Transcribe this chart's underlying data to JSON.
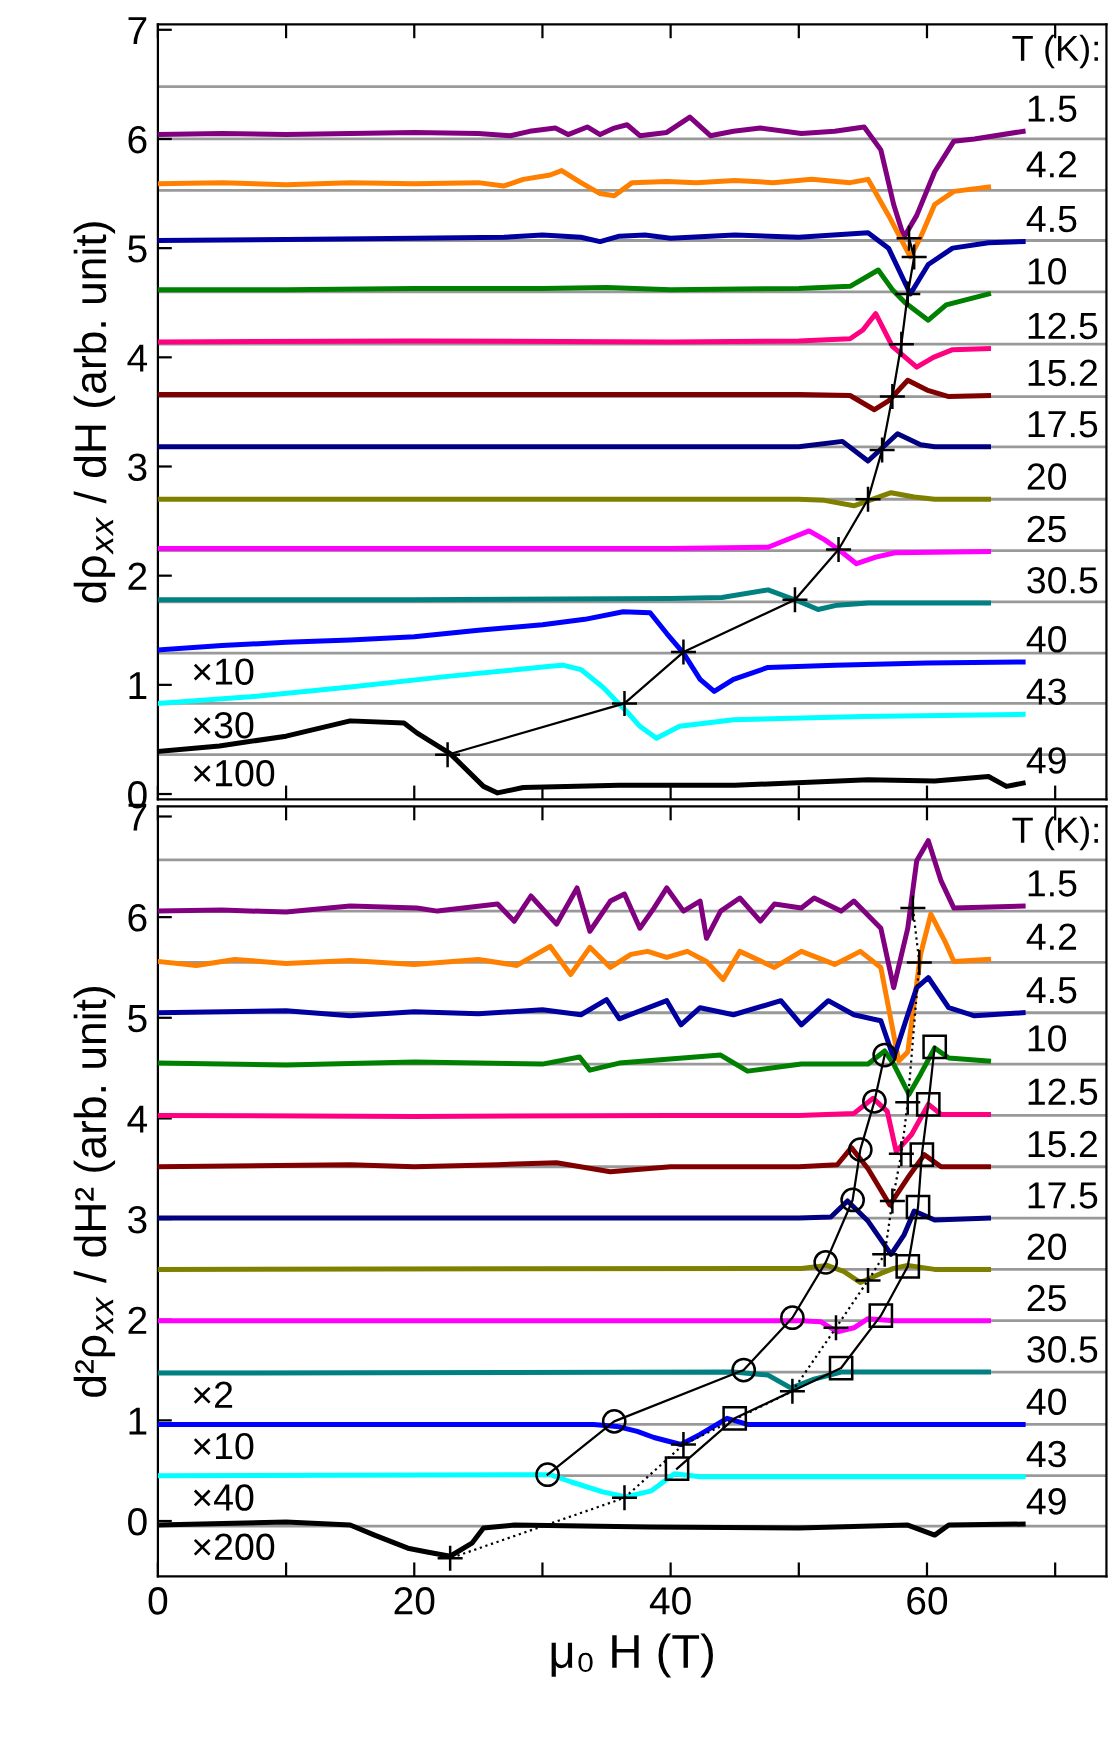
{
  "chart_data": [
    {
      "type": "line",
      "ylabel": "dρ$_{xx}$ / dH (arb. unit)",
      "xlim": [
        0,
        74
      ],
      "ylim": [
        -0.05,
        7.05
      ],
      "xticks": [
        0,
        {
          "value": 10,
          "label": null
        },
        20,
        {
          "value": 30,
          "label": null
        },
        40,
        {
          "value": 50,
          "label": null
        },
        60,
        {
          "value": 70,
          "label": null
        }
      ],
      "yticks": [
        0,
        1,
        2,
        3,
        4,
        5,
        6,
        7
      ],
      "tick_labels": "y",
      "ref_lines": [
        {
          "axis": "y",
          "value": 6.48,
          "color": "#999999"
        },
        {
          "axis": "y",
          "value": 6.0,
          "color": "#999999"
        },
        {
          "axis": "y",
          "value": 5.53,
          "color": "#999999"
        },
        {
          "axis": "y",
          "value": 5.07,
          "color": "#999999"
        },
        {
          "axis": "y",
          "value": 4.6,
          "color": "#999999"
        },
        {
          "axis": "y",
          "value": 4.12,
          "color": "#999999"
        },
        {
          "axis": "y",
          "value": 3.64,
          "color": "#999999"
        },
        {
          "axis": "y",
          "value": 3.18,
          "color": "#999999"
        },
        {
          "axis": "y",
          "value": 2.7,
          "color": "#999999"
        },
        {
          "axis": "y",
          "value": 2.23,
          "color": "#999999"
        },
        {
          "axis": "y",
          "value": 1.76,
          "color": "#999999"
        },
        {
          "axis": "y",
          "value": 1.29,
          "color": "#999999"
        },
        {
          "axis": "y",
          "value": 0.83,
          "color": "#999999"
        },
        {
          "axis": "y",
          "value": 0.36,
          "color": "#999999"
        }
      ],
      "annotations": [
        "T (K):",
        "1.5",
        "4.2",
        "4.5",
        "10",
        "12.5",
        "15.2",
        "17.5",
        "20",
        "25",
        "30.5",
        "40",
        "43",
        "49",
        "×10",
        "×30",
        "×100"
      ],
      "series": [
        {
          "color": "#800080",
          "x": [
            0,
            5,
            10,
            15,
            20,
            25,
            27.5,
            29,
            31,
            32,
            33.5,
            34.5,
            35.6,
            36.6,
            37.6,
            39.7,
            41.5,
            43.1,
            44.9,
            47,
            50.2,
            52.8,
            55.1,
            56.4,
            57.4,
            58.2,
            59.2,
            60.6,
            62.1,
            63.7,
            67.5
          ],
          "values": [
            6.04,
            6.05,
            6.04,
            6.05,
            6.06,
            6.05,
            6.03,
            6.07,
            6.1,
            6.04,
            6.11,
            6.04,
            6.1,
            6.13,
            6.03,
            6.06,
            6.2,
            6.03,
            6.07,
            6.1,
            6.05,
            6.07,
            6.11,
            5.9,
            5.4,
            5.1,
            5.3,
            5.7,
            5.98,
            6.0,
            6.07
          ]
        },
        {
          "color": "#ff8000",
          "x": [
            0,
            5,
            10,
            15,
            20,
            25,
            27,
            28.5,
            30.6,
            31.5,
            33,
            34.5,
            35.6,
            37,
            39.7,
            42,
            45,
            48,
            51,
            54,
            55.4,
            57,
            58.7,
            59.5,
            60.6,
            62.1,
            64.8
          ],
          "values": [
            5.59,
            5.6,
            5.58,
            5.6,
            5.59,
            5.6,
            5.57,
            5.63,
            5.67,
            5.71,
            5.6,
            5.5,
            5.48,
            5.6,
            5.61,
            5.6,
            5.62,
            5.6,
            5.63,
            5.6,
            5.63,
            5.3,
            4.92,
            5.1,
            5.4,
            5.52,
            5.56
          ]
        },
        {
          "color": "#0000a0",
          "x": [
            0,
            10,
            20,
            27,
            30,
            33,
            34.5,
            36,
            38,
            40,
            45,
            50,
            55.4,
            57,
            58.7,
            60.1,
            62,
            64.8,
            67.5
          ],
          "values": [
            5.07,
            5.08,
            5.09,
            5.1,
            5.12,
            5.1,
            5.06,
            5.11,
            5.12,
            5.09,
            5.12,
            5.1,
            5.14,
            5.0,
            4.58,
            4.85,
            5.0,
            5.05,
            5.06
          ]
        },
        {
          "color": "#008000",
          "x": [
            0,
            10,
            20,
            30,
            35,
            40,
            50,
            54,
            56.2,
            57.3,
            58.3,
            60.1,
            61.5,
            64.8
          ],
          "values": [
            4.62,
            4.62,
            4.63,
            4.63,
            4.64,
            4.62,
            4.63,
            4.65,
            4.8,
            4.62,
            4.5,
            4.34,
            4.48,
            4.58
          ]
        },
        {
          "color": "#ff0080",
          "x": [
            0,
            20,
            40,
            50,
            54,
            55,
            56,
            57.3,
            59.2,
            60.5,
            62,
            64.8
          ],
          "values": [
            4.14,
            4.15,
            4.14,
            4.15,
            4.17,
            4.25,
            4.4,
            4.1,
            3.91,
            4.0,
            4.07,
            4.08
          ]
        },
        {
          "color": "#800000",
          "x": [
            0,
            20,
            40,
            50,
            54,
            55.9,
            57,
            58.5,
            60,
            61.7,
            64.8
          ],
          "values": [
            3.66,
            3.66,
            3.66,
            3.66,
            3.65,
            3.52,
            3.6,
            3.79,
            3.7,
            3.64,
            3.65
          ]
        },
        {
          "color": "#000080",
          "x": [
            0,
            20,
            40,
            50,
            53.4,
            55.4,
            57.7,
            59.5,
            60.6,
            64.8
          ],
          "values": [
            3.18,
            3.18,
            3.18,
            3.18,
            3.23,
            3.05,
            3.3,
            3.2,
            3.18,
            3.18
          ]
        },
        {
          "color": "#808000",
          "x": [
            0,
            20,
            40,
            50,
            52,
            54.3,
            57.2,
            59,
            60.6,
            64.8
          ],
          "values": [
            2.7,
            2.7,
            2.7,
            2.7,
            2.69,
            2.64,
            2.76,
            2.72,
            2.7,
            2.7
          ]
        },
        {
          "color": "#ff00ff",
          "x": [
            0,
            20,
            40,
            47.6,
            49.5,
            50.8,
            52,
            53.2,
            54.5,
            56,
            57.5,
            64.8
          ],
          "values": [
            2.25,
            2.25,
            2.25,
            2.26,
            2.35,
            2.41,
            2.33,
            2.23,
            2.11,
            2.17,
            2.21,
            2.22
          ]
        },
        {
          "color": "#008080",
          "x": [
            0,
            20,
            40,
            44,
            47.6,
            49.9,
            51.5,
            53,
            55.4,
            64.8
          ],
          "values": [
            1.78,
            1.78,
            1.79,
            1.8,
            1.87,
            1.77,
            1.69,
            1.73,
            1.75,
            1.75
          ]
        },
        {
          "color": "#0000ff",
          "x": [
            0,
            5,
            10,
            15,
            20,
            25,
            30,
            33.3,
            36.3,
            38.4,
            39.7,
            41,
            42.3,
            43.4,
            44.9,
            47.6,
            52.8,
            60,
            67.5
          ],
          "values": [
            1.32,
            1.36,
            1.39,
            1.41,
            1.44,
            1.5,
            1.55,
            1.6,
            1.67,
            1.66,
            1.47,
            1.29,
            1.05,
            0.94,
            1.05,
            1.16,
            1.18,
            1.2,
            1.21
          ]
        },
        {
          "color": "#00ffff",
          "x": [
            0,
            7.2,
            15,
            22.8,
            30.6,
            31.6,
            33,
            34.7,
            36.7,
            37.6,
            38.9,
            40.7,
            44.9,
            55,
            67.5
          ],
          "values": [
            0.83,
            0.89,
            0.98,
            1.08,
            1.17,
            1.18,
            1.14,
            0.98,
            0.74,
            0.62,
            0.51,
            0.62,
            0.68,
            0.71,
            0.73
          ]
        },
        {
          "color": "#000000",
          "x": [
            0,
            4.8,
            10,
            15,
            19.2,
            20.2,
            22.8,
            25.4,
            26.5,
            28.5,
            36,
            45,
            55.4,
            60.6,
            64.8,
            66.2,
            67.5
          ],
          "values": [
            0.39,
            0.44,
            0.53,
            0.67,
            0.65,
            0.56,
            0.37,
            0.07,
            0.01,
            0.06,
            0.08,
            0.08,
            0.13,
            0.12,
            0.16,
            0.07,
            0.1
          ]
        },
        {
          "color": "#000000",
          "marker": "cross",
          "line_style": "solid",
          "x": [
            58.6,
            59.0,
            58.5,
            58.0,
            57.3,
            56.5,
            55.4,
            53.1,
            49.7,
            41.0,
            36.4,
            22.6
          ],
          "values": [
            5.09,
            4.92,
            4.58,
            4.12,
            3.64,
            3.15,
            2.7,
            2.24,
            1.78,
            1.3,
            0.83,
            0.36
          ]
        }
      ]
    },
    {
      "type": "line",
      "ylabel": "d²ρ$_{xx}$ / dH² (arb. unit)",
      "xlabel": "μ₀ H (T)",
      "xlim": [
        0,
        74
      ],
      "ylim": [
        -0.55,
        7.1
      ],
      "xticks": [
        0,
        {
          "value": 10,
          "label": null
        },
        20,
        {
          "value": 30,
          "label": null
        },
        40,
        {
          "value": 50,
          "label": null
        },
        60,
        {
          "value": 70,
          "label": null
        }
      ],
      "yticks": [
        0,
        1,
        2,
        3,
        4,
        5,
        6,
        7
      ],
      "ref_lines": [
        {
          "axis": "y",
          "value": 6.57,
          "color": "#999999"
        },
        {
          "axis": "y",
          "value": 6.06,
          "color": "#999999"
        },
        {
          "axis": "y",
          "value": 5.55,
          "color": "#999999"
        },
        {
          "axis": "y",
          "value": 5.05,
          "color": "#999999"
        },
        {
          "axis": "y",
          "value": 4.54,
          "color": "#999999"
        },
        {
          "axis": "y",
          "value": 4.03,
          "color": "#999999"
        },
        {
          "axis": "y",
          "value": 3.52,
          "color": "#999999"
        },
        {
          "axis": "y",
          "value": 3.01,
          "color": "#999999"
        },
        {
          "axis": "y",
          "value": 2.5,
          "color": "#999999"
        },
        {
          "axis": "y",
          "value": 1.99,
          "color": "#999999"
        },
        {
          "axis": "y",
          "value": 1.48,
          "color": "#999999"
        },
        {
          "axis": "y",
          "value": 0.96,
          "color": "#999999"
        },
        {
          "axis": "y",
          "value": 0.45,
          "color": "#999999"
        },
        {
          "axis": "y",
          "value": -0.05,
          "color": "#999999"
        }
      ],
      "annotations": [
        "T (K):",
        "1.5",
        "4.2",
        "4.5",
        "10",
        "12.5",
        "15.2",
        "17.5",
        "20",
        "25",
        "30.5",
        "40",
        "43",
        "49",
        "×2",
        "×10",
        "×40",
        "×200"
      ],
      "series": [
        {
          "color": "#800080",
          "x": [
            0,
            5,
            10,
            15,
            20.2,
            21.8,
            26.5,
            27.8,
            29.1,
            31.1,
            32.7,
            33.7,
            35.3,
            36.4,
            37.6,
            38.7,
            39.7,
            41,
            42.3,
            42.8,
            43.9,
            45.4,
            47,
            48.1,
            50.2,
            51.2,
            53.3,
            54.3,
            56.4,
            57.4,
            58.5,
            59.2,
            60.1,
            61.1,
            62.1,
            67.5
          ],
          "values": [
            6.06,
            6.07,
            6.05,
            6.11,
            6.09,
            6.06,
            6.13,
            5.96,
            6.21,
            5.93,
            6.29,
            5.86,
            6.16,
            6.23,
            5.89,
            6.09,
            6.29,
            6.06,
            6.16,
            5.79,
            6.06,
            6.19,
            5.96,
            6.13,
            6.09,
            6.19,
            6.06,
            6.16,
            5.89,
            5.3,
            5.89,
            6.56,
            6.76,
            6.36,
            6.09,
            6.11
          ]
        },
        {
          "color": "#ff8000",
          "x": [
            0,
            3,
            6,
            10,
            15,
            20,
            25,
            28,
            30.6,
            32.2,
            33.7,
            35.3,
            36.9,
            38.2,
            39.7,
            41.3,
            42.8,
            44.1,
            45.4,
            48.1,
            50.2,
            52.8,
            54.8,
            56.4,
            57.8,
            58.5,
            59.5,
            60.3,
            61.4,
            62.1,
            64.8
          ],
          "values": [
            5.56,
            5.52,
            5.58,
            5.54,
            5.57,
            5.53,
            5.58,
            5.52,
            5.71,
            5.43,
            5.7,
            5.5,
            5.63,
            5.66,
            5.6,
            5.66,
            5.56,
            5.38,
            5.66,
            5.5,
            5.66,
            5.53,
            5.66,
            5.5,
            4.57,
            4.66,
            5.63,
            6.03,
            5.76,
            5.56,
            5.58
          ]
        },
        {
          "color": "#0000a0",
          "x": [
            0,
            10,
            15,
            20,
            25,
            30,
            33,
            35,
            36,
            39.7,
            40.8,
            42.3,
            44.9,
            48.6,
            50.2,
            52.3,
            54.3,
            56.4,
            57.4,
            58.5,
            59.2,
            60.1,
            61.7,
            63.7,
            67.5
          ],
          "values": [
            5.05,
            5.07,
            5.02,
            5.06,
            5.04,
            5.08,
            5.03,
            5.18,
            4.99,
            5.17,
            4.93,
            5.1,
            5.03,
            5.17,
            4.93,
            5.17,
            5.03,
            4.97,
            4.6,
            5.03,
            5.3,
            5.4,
            5.1,
            5.02,
            5.05
          ]
        },
        {
          "color": "#008000",
          "x": [
            0,
            10,
            20,
            30,
            32.9,
            33.7,
            36,
            43.9,
            46,
            50.2,
            55.4,
            56.7,
            57.4,
            58.6,
            59.5,
            60.6,
            61.7,
            64.8
          ],
          "values": [
            4.55,
            4.53,
            4.56,
            4.54,
            4.61,
            4.48,
            4.55,
            4.63,
            4.47,
            4.54,
            4.54,
            4.67,
            4.54,
            4.24,
            4.44,
            4.7,
            4.6,
            4.57
          ]
        },
        {
          "color": "#ff0080",
          "x": [
            0,
            20,
            40,
            50,
            54.3,
            55.8,
            56.9,
            57.6,
            58.8,
            60.1,
            61.1,
            64.8
          ],
          "values": [
            4.03,
            4.02,
            4.03,
            4.03,
            4.05,
            4.2,
            4.07,
            3.67,
            3.84,
            4.14,
            4.04,
            4.04
          ]
        },
        {
          "color": "#800000",
          "x": [
            0,
            15,
            20,
            26.5,
            31.1,
            35.3,
            40,
            50,
            53,
            54.1,
            55.4,
            57.1,
            58.5,
            59.8,
            61.1,
            64.8
          ],
          "values": [
            3.52,
            3.54,
            3.52,
            3.54,
            3.56,
            3.47,
            3.52,
            3.52,
            3.54,
            3.71,
            3.5,
            3.14,
            3.41,
            3.64,
            3.52,
            3.52
          ]
        },
        {
          "color": "#000080",
          "x": [
            0,
            50,
            52.5,
            53.8,
            55.4,
            57.2,
            58.2,
            59.0,
            60.6,
            64.8
          ],
          "values": [
            3.01,
            3.01,
            3.02,
            3.18,
            2.98,
            2.65,
            2.84,
            3.08,
            2.99,
            3.01
          ]
        },
        {
          "color": "#808000",
          "x": [
            0,
            50.2,
            52.2,
            53.5,
            54.8,
            56.4,
            57.4,
            58.5,
            60.6,
            64.8
          ],
          "values": [
            2.5,
            2.51,
            2.54,
            2.48,
            2.37,
            2.46,
            2.51,
            2.54,
            2.5,
            2.5
          ]
        },
        {
          "color": "#ff00ff",
          "x": [
            0,
            50.2,
            51.7,
            53.0,
            54.3,
            55.4,
            57.4,
            64.8
          ],
          "values": [
            1.99,
            1.99,
            1.98,
            1.88,
            1.92,
            2.01,
            1.99,
            1.99
          ]
        },
        {
          "color": "#008080",
          "x": [
            0,
            44.9,
            47.6,
            49.4,
            51.2,
            53.3,
            64.8
          ],
          "values": [
            1.47,
            1.48,
            1.45,
            1.32,
            1.41,
            1.48,
            1.48
          ]
        },
        {
          "color": "#0000ff",
          "x": [
            0,
            34,
            35.8,
            37.4,
            38.7,
            40.8,
            42.3,
            44.4,
            46,
            50,
            67.5
          ],
          "values": [
            0.96,
            0.96,
            0.94,
            0.89,
            0.83,
            0.76,
            0.86,
            1.02,
            0.96,
            0.96,
            0.96
          ]
        },
        {
          "color": "#00ffff",
          "x": [
            0,
            30.6,
            32.2,
            34.7,
            36.5,
            38.5,
            40.3,
            42.3,
            67.5
          ],
          "values": [
            0.45,
            0.46,
            0.39,
            0.29,
            0.24,
            0.3,
            0.47,
            0.44,
            0.44
          ]
        },
        {
          "color": "#000000",
          "x": [
            0,
            10,
            15,
            16.9,
            19.5,
            21.1,
            22.8,
            24.5,
            25.4,
            27.8,
            38.4,
            50,
            58.5,
            60.6,
            61.7,
            67.5
          ],
          "values": [
            -0.04,
            -0.01,
            -0.04,
            -0.14,
            -0.27,
            -0.31,
            -0.35,
            -0.22,
            -0.07,
            -0.04,
            -0.06,
            -0.07,
            -0.04,
            -0.14,
            -0.04,
            -0.03
          ]
        },
        {
          "color": "#000000",
          "marker": "circle",
          "line_style": "solid",
          "x": [
            56.7,
            55.9,
            54.8,
            54.2,
            52.1,
            49.5,
            45.7,
            35.6,
            30.4
          ],
          "values": [
            4.63,
            4.17,
            3.69,
            3.19,
            2.57,
            2.02,
            1.5,
            0.99,
            0.46
          ]
        },
        {
          "color": "#000000",
          "marker": "square",
          "line_style": "solid",
          "x": [
            60.6,
            60.1,
            59.6,
            59.3,
            58.5,
            56.4,
            53.3,
            45.0,
            40.5
          ],
          "values": [
            4.71,
            4.14,
            3.64,
            3.12,
            2.53,
            2.04,
            1.52,
            1.02,
            0.52
          ]
        },
        {
          "color": "#000000",
          "marker": "cross",
          "line_style": "dotted",
          "x": [
            58.9,
            59.4,
            58.5,
            58.0,
            57.3,
            56.7,
            55.4,
            52.9,
            49.5,
            41.0,
            36.4,
            22.8
          ],
          "values": [
            6.09,
            5.55,
            4.16,
            3.65,
            3.18,
            2.65,
            2.39,
            1.92,
            1.29,
            0.76,
            0.23,
            -0.37
          ]
        }
      ]
    }
  ]
}
